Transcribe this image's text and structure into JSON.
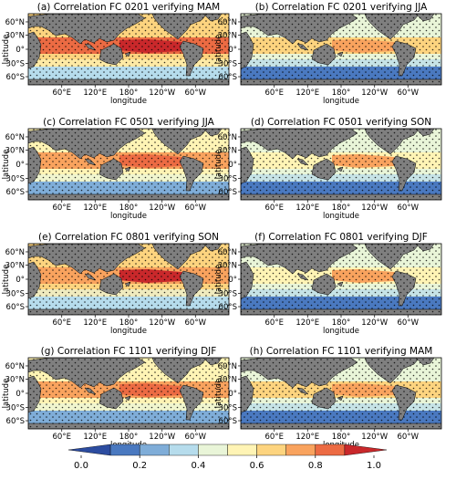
{
  "panels": [
    {
      "title": "(a) Correlation FC 0201 verifying MAM",
      "skill": 0.65
    },
    {
      "title": "(b) Correlation FC 0201 verifying JJA",
      "skill": 0.45
    },
    {
      "title": "(c) Correlation FC 0501 verifying JJA",
      "skill": 0.55
    },
    {
      "title": "(d) Correlation FC 0501 verifying SON",
      "skill": 0.42
    },
    {
      "title": "(e) Correlation FC 0801 verifying SON",
      "skill": 0.6
    },
    {
      "title": "(f) Correlation FC 0801 verifying DJF",
      "skill": 0.42
    },
    {
      "title": "(g) Correlation FC 1101 verifying DJF",
      "skill": 0.55
    },
    {
      "title": "(h) Correlation FC 1101 verifying MAM",
      "skill": 0.45
    }
  ],
  "axes": {
    "xlabel": "longitude",
    "ylabel": "latitude",
    "lon_ticks": [
      "60°E",
      "120°E",
      "180°",
      "120°W",
      "60°W"
    ],
    "lat_ticks": [
      "60°N",
      "30°N",
      "0°",
      "30°S",
      "60°S"
    ]
  },
  "colorbar": {
    "ticks": [
      "0.0",
      "0.2",
      "0.4",
      "0.6",
      "0.8",
      "1.0"
    ],
    "min": 0.0,
    "max": 1.0,
    "colors": [
      "#2c4ca0",
      "#4a79c0",
      "#7fadd8",
      "#b6dcec",
      "#e9f5d8",
      "#fff4b5",
      "#fdd47f",
      "#f9a35e",
      "#ec6b43",
      "#c9282b"
    ]
  },
  "land_color": "#7f7f7f"
}
